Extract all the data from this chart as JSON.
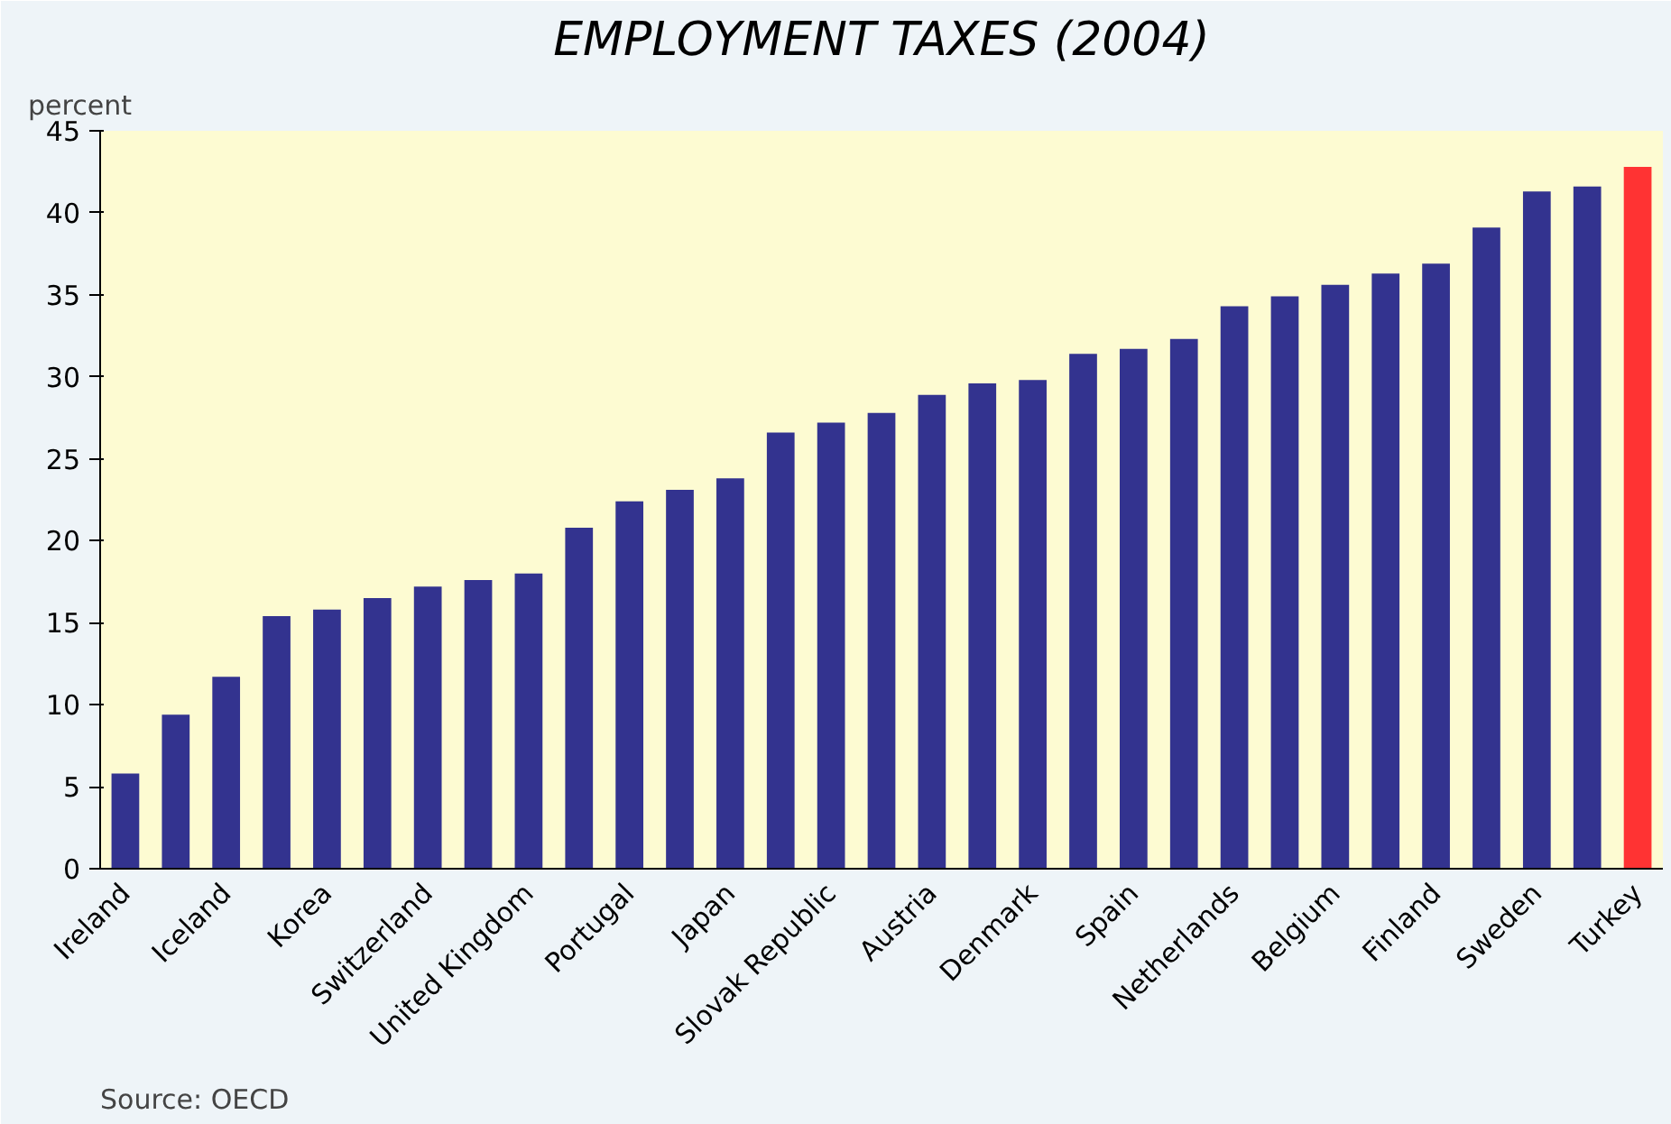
{
  "chart_data": {
    "type": "bar",
    "title": "EMPLOYMENT TAXES (2004)",
    "ylabel": "percent",
    "categories": [
      "Ireland",
      null,
      "Iceland",
      null,
      "Korea",
      null,
      "Switzerland",
      null,
      "United Kingdom",
      null,
      "Portugal",
      null,
      "Japan",
      null,
      "Slovak Republic",
      null,
      "Austria",
      null,
      "Denmark",
      null,
      "Spain",
      null,
      "Netherlands",
      null,
      "Belgium",
      null,
      "Finland",
      null,
      "Sweden",
      null,
      "Turkey"
    ],
    "values": [
      5.8,
      9.4,
      11.7,
      15.4,
      15.8,
      16.5,
      17.2,
      17.6,
      18.0,
      20.8,
      22.4,
      23.1,
      23.8,
      26.6,
      27.2,
      27.8,
      28.9,
      29.6,
      29.8,
      31.4,
      31.7,
      32.3,
      34.3,
      34.9,
      35.6,
      36.3,
      36.9,
      39.1,
      41.3,
      41.6,
      42.8
    ],
    "colors": [
      "#33338f",
      "#33338f",
      "#33338f",
      "#33338f",
      "#33338f",
      "#33338f",
      "#33338f",
      "#33338f",
      "#33338f",
      "#33338f",
      "#33338f",
      "#33338f",
      "#33338f",
      "#33338f",
      "#33338f",
      "#33338f",
      "#33338f",
      "#33338f",
      "#33338f",
      "#33338f",
      "#33338f",
      "#33338f",
      "#33338f",
      "#33338f",
      "#33338f",
      "#33338f",
      "#33338f",
      "#33338f",
      "#33338f",
      "#33338f",
      "#ff3333"
    ],
    "ylim": [
      0,
      45
    ],
    "yticks": [
      0,
      5,
      10,
      15,
      20,
      25,
      30,
      35,
      40,
      45
    ],
    "grid": false,
    "annotations": [
      "Source: OECD"
    ]
  }
}
